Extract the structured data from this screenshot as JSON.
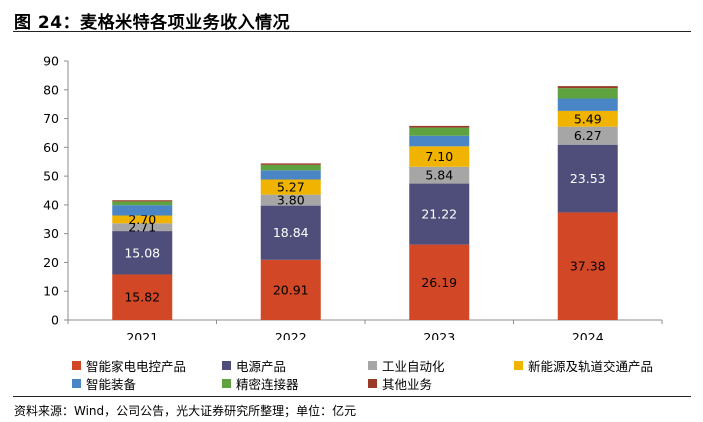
{
  "figure": {
    "title": "图 24：麦格米特各项业务收入情况",
    "source": "资料来源：Wind，公司公告，光大证券研究所整理；单位：亿元"
  },
  "chart_data": {
    "type": "bar",
    "stacked": true,
    "categories": [
      "2021",
      "2022",
      "2023",
      "2024"
    ],
    "ylim": [
      0,
      90
    ],
    "yticks": [
      0,
      10,
      20,
      30,
      40,
      50,
      60,
      70,
      80,
      90
    ],
    "xlabel": "",
    "ylabel": "",
    "grid": false,
    "legend_position": "bottom",
    "series": [
      {
        "name": "智能家电电控产品",
        "color": "#d24726",
        "values": [
          15.82,
          20.91,
          26.19,
          37.38
        ],
        "labels": [
          "15.82",
          "20.91",
          "26.19",
          "37.38"
        ],
        "label_color": "#000000"
      },
      {
        "name": "电源产品",
        "color": "#4f4e7a",
        "values": [
          15.08,
          18.84,
          21.22,
          23.53
        ],
        "labels": [
          "15.08",
          "18.84",
          "21.22",
          "23.53"
        ],
        "label_color": "#ffffff"
      },
      {
        "name": "工业自动化",
        "color": "#a6a6a6",
        "values": [
          2.71,
          3.8,
          5.84,
          6.27
        ],
        "labels": [
          "2.71",
          "3.80",
          "5.84",
          "6.27"
        ],
        "label_color": "#000000"
      },
      {
        "name": "新能源及轨道交通产品",
        "color": "#f0b400",
        "values": [
          2.7,
          5.27,
          7.1,
          5.49
        ],
        "labels": [
          "2.70",
          "5.27",
          "7.10",
          "5.49"
        ],
        "label_color": "#000000"
      },
      {
        "name": "智能装备",
        "color": "#4a86c5",
        "values": [
          3.6,
          3.2,
          3.7,
          4.3
        ],
        "labels": [],
        "label_color": "#000000"
      },
      {
        "name": "精密连接器",
        "color": "#5ea33f",
        "values": [
          1.3,
          1.9,
          2.8,
          3.6
        ],
        "labels": [],
        "label_color": "#000000"
      },
      {
        "name": "其他业务",
        "color": "#9b3a26",
        "values": [
          0.4,
          0.5,
          0.6,
          0.7
        ],
        "labels": [],
        "label_color": "#000000"
      }
    ]
  }
}
